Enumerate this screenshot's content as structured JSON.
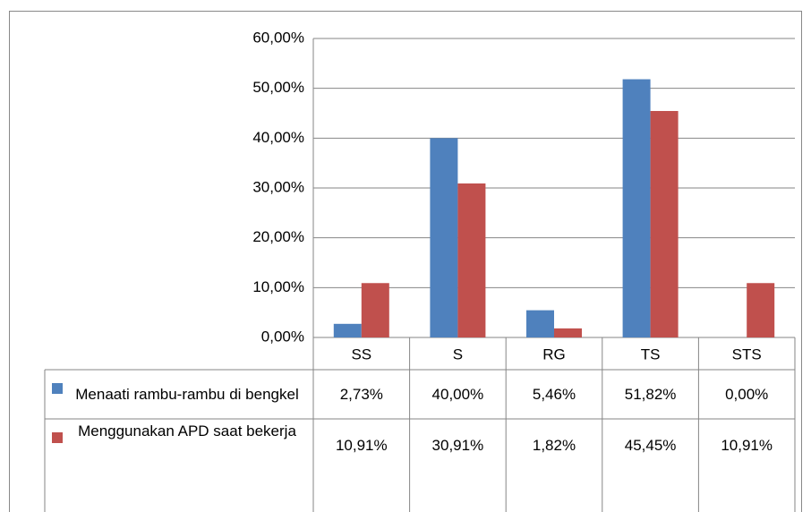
{
  "chart_data": {
    "type": "bar",
    "categories": [
      "SS",
      "S",
      "RG",
      "TS",
      "STS"
    ],
    "series": [
      {
        "name": "Menaati rambu-rambu di bengkel",
        "color": "#4f81bd",
        "values": [
          2.73,
          40,
          5.46,
          51.82,
          0
        ],
        "value_labels": [
          "2,73%",
          "40,00%",
          "5,46%",
          "51,82%",
          "0,00%"
        ]
      },
      {
        "name": "Menggunakan APD saat bekerja",
        "color": "#c0504d",
        "values": [
          10.91,
          30.91,
          1.82,
          45.45,
          10.91
        ],
        "value_labels": [
          "10,91%",
          "30,91%",
          "1,82%",
          "45,45%",
          "10,91%"
        ]
      }
    ],
    "ylim": [
      0,
      60
    ],
    "yticks": [
      {
        "value": 0,
        "label": "0,00%"
      },
      {
        "value": 10,
        "label": "10,00%"
      },
      {
        "value": 20,
        "label": "20,00%"
      },
      {
        "value": 30,
        "label": "30,00%"
      },
      {
        "value": 40,
        "label": "40,00%"
      },
      {
        "value": 50,
        "label": "50,00%"
      },
      {
        "value": 60,
        "label": "60,00%"
      }
    ],
    "grid": true
  }
}
